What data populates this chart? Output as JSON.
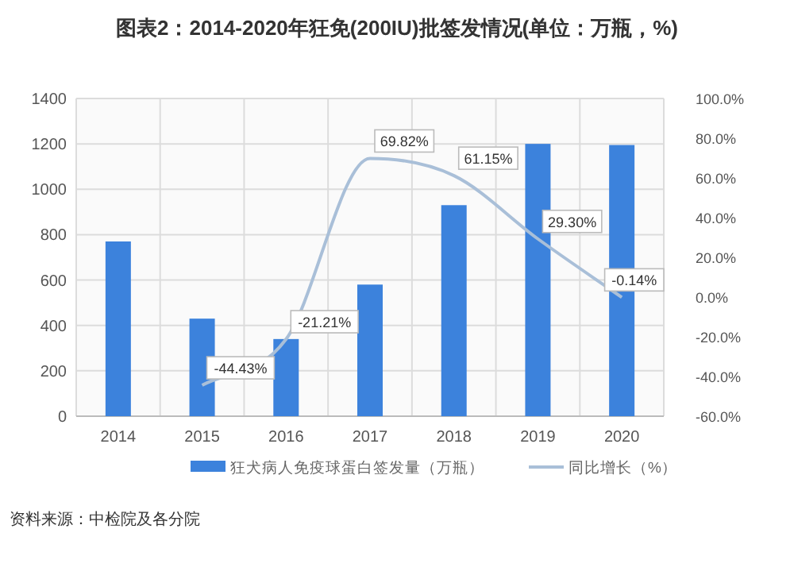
{
  "chart_data": {
    "type": "bar",
    "title": "图表2：2014-2020年狂免(200IU)批签发情况(单位：万瓶，%)",
    "categories": [
      "2014",
      "2015",
      "2016",
      "2017",
      "2018",
      "2019",
      "2020"
    ],
    "series": [
      {
        "name": "狂犬病人免疫球蛋白签发量（万瓶）",
        "color": "#3c82dc",
        "values": [
          770,
          430,
          340,
          580,
          930,
          1200,
          1195
        ]
      },
      {
        "name": "同比增长（%）",
        "type": "line",
        "axis": "y2",
        "color": "#a9bfd8",
        "values": [
          null,
          -44.43,
          -21.21,
          69.82,
          61.15,
          29.3,
          -0.14
        ],
        "value_labels": [
          null,
          "-44.43%",
          "-21.21%",
          "69.82%",
          "61.15%",
          "29.30%",
          "-0.14%"
        ]
      }
    ],
    "ylim": [
      0,
      1400
    ],
    "yticks": [
      0,
      200,
      400,
      600,
      800,
      1000,
      1200,
      1400
    ],
    "y2lim": [
      -60,
      100
    ],
    "y2ticks": [
      {
        "value": -60,
        "label": "-60.0%"
      },
      {
        "value": -40,
        "label": "-40.0%"
      },
      {
        "value": -20,
        "label": "-20.0%"
      },
      {
        "value": 0,
        "label": "0.0%"
      },
      {
        "value": 20,
        "label": "20.0%"
      },
      {
        "value": 40,
        "label": "40.0%"
      },
      {
        "value": 60,
        "label": "60.0%"
      },
      {
        "value": 80,
        "label": "80.0%"
      },
      {
        "value": 100,
        "label": "100.0%"
      }
    ],
    "grid": true,
    "legend": "bottom",
    "annotations": [
      "资料来源：中检院及各分院"
    ]
  }
}
